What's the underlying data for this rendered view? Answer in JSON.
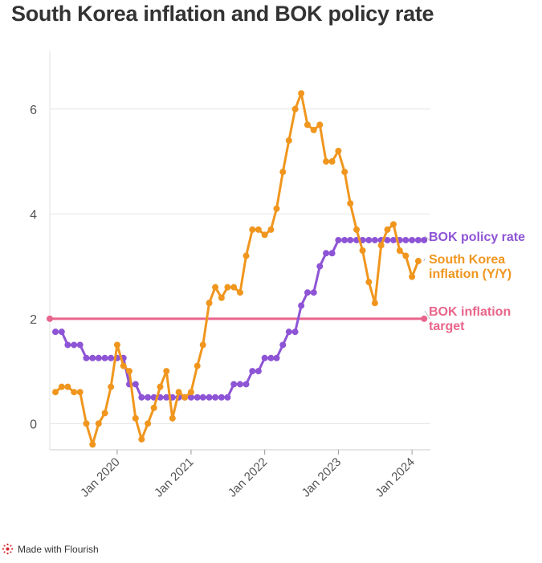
{
  "title": "South Korea inflation and BOK policy rate",
  "footer": {
    "text": "Made with Flourish",
    "icon": "flourish-logo-icon"
  },
  "chart_data": {
    "type": "line",
    "title": "South Korea inflation and BOK policy rate",
    "xlabel": "",
    "ylabel": "",
    "xlim": [
      "2019-02-01",
      "2024-04-01"
    ],
    "ylim": [
      -0.5,
      7.1
    ],
    "y_ticks": [
      0,
      2,
      4,
      6
    ],
    "x_ticks": [
      {
        "date": "2020-01-01",
        "label": "Jan 2020"
      },
      {
        "date": "2021-01-01",
        "label": "Jan 2021"
      },
      {
        "date": "2022-01-01",
        "label": "Jan 2022"
      },
      {
        "date": "2023-01-01",
        "label": "Jan 2023"
      },
      {
        "date": "2024-01-01",
        "label": "Jan 2024"
      }
    ],
    "grid": true,
    "legend": "end-of-line labels",
    "series": [
      {
        "name": "BOK policy rate",
        "label_lines": [
          "BOK policy rate"
        ],
        "color": "#8e54d6",
        "points": [
          [
            "2019-03-01",
            1.75
          ],
          [
            "2019-04-01",
            1.75
          ],
          [
            "2019-05-01",
            1.5
          ],
          [
            "2019-06-01",
            1.5
          ],
          [
            "2019-07-01",
            1.5
          ],
          [
            "2019-08-01",
            1.25
          ],
          [
            "2019-09-01",
            1.25
          ],
          [
            "2019-10-01",
            1.25
          ],
          [
            "2019-11-01",
            1.25
          ],
          [
            "2019-12-01",
            1.25
          ],
          [
            "2020-01-01",
            1.25
          ],
          [
            "2020-02-01",
            1.25
          ],
          [
            "2020-03-01",
            0.75
          ],
          [
            "2020-04-01",
            0.75
          ],
          [
            "2020-05-01",
            0.5
          ],
          [
            "2020-06-01",
            0.5
          ],
          [
            "2020-07-01",
            0.5
          ],
          [
            "2020-08-01",
            0.5
          ],
          [
            "2020-09-01",
            0.5
          ],
          [
            "2020-10-01",
            0.5
          ],
          [
            "2020-11-01",
            0.5
          ],
          [
            "2020-12-01",
            0.5
          ],
          [
            "2021-01-01",
            0.5
          ],
          [
            "2021-02-01",
            0.5
          ],
          [
            "2021-03-01",
            0.5
          ],
          [
            "2021-04-01",
            0.5
          ],
          [
            "2021-05-01",
            0.5
          ],
          [
            "2021-06-01",
            0.5
          ],
          [
            "2021-07-01",
            0.5
          ],
          [
            "2021-08-01",
            0.75
          ],
          [
            "2021-09-01",
            0.75
          ],
          [
            "2021-10-01",
            0.75
          ],
          [
            "2021-11-01",
            1.0
          ],
          [
            "2021-12-01",
            1.0
          ],
          [
            "2022-01-01",
            1.25
          ],
          [
            "2022-02-01",
            1.25
          ],
          [
            "2022-03-01",
            1.25
          ],
          [
            "2022-04-01",
            1.5
          ],
          [
            "2022-05-01",
            1.75
          ],
          [
            "2022-06-01",
            1.75
          ],
          [
            "2022-07-01",
            2.25
          ],
          [
            "2022-08-01",
            2.5
          ],
          [
            "2022-09-01",
            2.5
          ],
          [
            "2022-10-01",
            3.0
          ],
          [
            "2022-11-01",
            3.25
          ],
          [
            "2022-12-01",
            3.25
          ],
          [
            "2023-01-01",
            3.5
          ],
          [
            "2023-02-01",
            3.5
          ],
          [
            "2023-03-01",
            3.5
          ],
          [
            "2023-04-01",
            3.5
          ],
          [
            "2023-05-01",
            3.5
          ],
          [
            "2023-06-01",
            3.5
          ],
          [
            "2023-07-01",
            3.5
          ],
          [
            "2023-08-01",
            3.5
          ],
          [
            "2023-09-01",
            3.5
          ],
          [
            "2023-10-01",
            3.5
          ],
          [
            "2023-11-01",
            3.5
          ],
          [
            "2023-12-01",
            3.5
          ],
          [
            "2024-01-01",
            3.5
          ],
          [
            "2024-02-01",
            3.5
          ],
          [
            "2024-03-01",
            3.5
          ]
        ]
      },
      {
        "name": "South Korea inflation (Y/Y)",
        "label_lines": [
          "South Korea",
          "inflation (Y/Y)"
        ],
        "color": "#f0961e",
        "points": [
          [
            "2019-03-01",
            0.6
          ],
          [
            "2019-04-01",
            0.7
          ],
          [
            "2019-05-01",
            0.7
          ],
          [
            "2019-06-01",
            0.6
          ],
          [
            "2019-07-01",
            0.6
          ],
          [
            "2019-08-01",
            0.0
          ],
          [
            "2019-09-01",
            -0.4
          ],
          [
            "2019-10-01",
            0.0
          ],
          [
            "2019-11-01",
            0.2
          ],
          [
            "2019-12-01",
            0.7
          ],
          [
            "2020-01-01",
            1.5
          ],
          [
            "2020-02-01",
            1.1
          ],
          [
            "2020-03-01",
            1.0
          ],
          [
            "2020-04-01",
            0.1
          ],
          [
            "2020-05-01",
            -0.3
          ],
          [
            "2020-06-01",
            0.0
          ],
          [
            "2020-07-01",
            0.3
          ],
          [
            "2020-08-01",
            0.7
          ],
          [
            "2020-09-01",
            1.0
          ],
          [
            "2020-10-01",
            0.1
          ],
          [
            "2020-11-01",
            0.6
          ],
          [
            "2020-12-01",
            0.5
          ],
          [
            "2021-01-01",
            0.6
          ],
          [
            "2021-02-01",
            1.1
          ],
          [
            "2021-03-01",
            1.5
          ],
          [
            "2021-04-01",
            2.3
          ],
          [
            "2021-05-01",
            2.6
          ],
          [
            "2021-06-01",
            2.4
          ],
          [
            "2021-07-01",
            2.6
          ],
          [
            "2021-08-01",
            2.6
          ],
          [
            "2021-09-01",
            2.5
          ],
          [
            "2021-10-01",
            3.2
          ],
          [
            "2021-11-01",
            3.7
          ],
          [
            "2021-12-01",
            3.7
          ],
          [
            "2022-01-01",
            3.6
          ],
          [
            "2022-02-01",
            3.7
          ],
          [
            "2022-03-01",
            4.1
          ],
          [
            "2022-04-01",
            4.8
          ],
          [
            "2022-05-01",
            5.4
          ],
          [
            "2022-06-01",
            6.0
          ],
          [
            "2022-07-01",
            6.3
          ],
          [
            "2022-08-01",
            5.7
          ],
          [
            "2022-09-01",
            5.6
          ],
          [
            "2022-10-01",
            5.7
          ],
          [
            "2022-11-01",
            5.0
          ],
          [
            "2022-12-01",
            5.0
          ],
          [
            "2023-01-01",
            5.2
          ],
          [
            "2023-02-01",
            4.8
          ],
          [
            "2023-03-01",
            4.2
          ],
          [
            "2023-04-01",
            3.7
          ],
          [
            "2023-05-01",
            3.3
          ],
          [
            "2023-06-01",
            2.7
          ],
          [
            "2023-07-01",
            2.3
          ],
          [
            "2023-08-01",
            3.4
          ],
          [
            "2023-09-01",
            3.7
          ],
          [
            "2023-10-01",
            3.8
          ],
          [
            "2023-11-01",
            3.3
          ],
          [
            "2023-12-01",
            3.2
          ],
          [
            "2024-01-01",
            2.8
          ],
          [
            "2024-02-01",
            3.1
          ]
        ]
      },
      {
        "name": "BOK inflation target",
        "label_lines": [
          "BOK inflation",
          "target"
        ],
        "color": "#e8658c",
        "points": [
          [
            "2019-02-01",
            2.0
          ],
          [
            "2024-03-01",
            2.0
          ]
        ],
        "markers_at_ends_only": true
      }
    ]
  }
}
